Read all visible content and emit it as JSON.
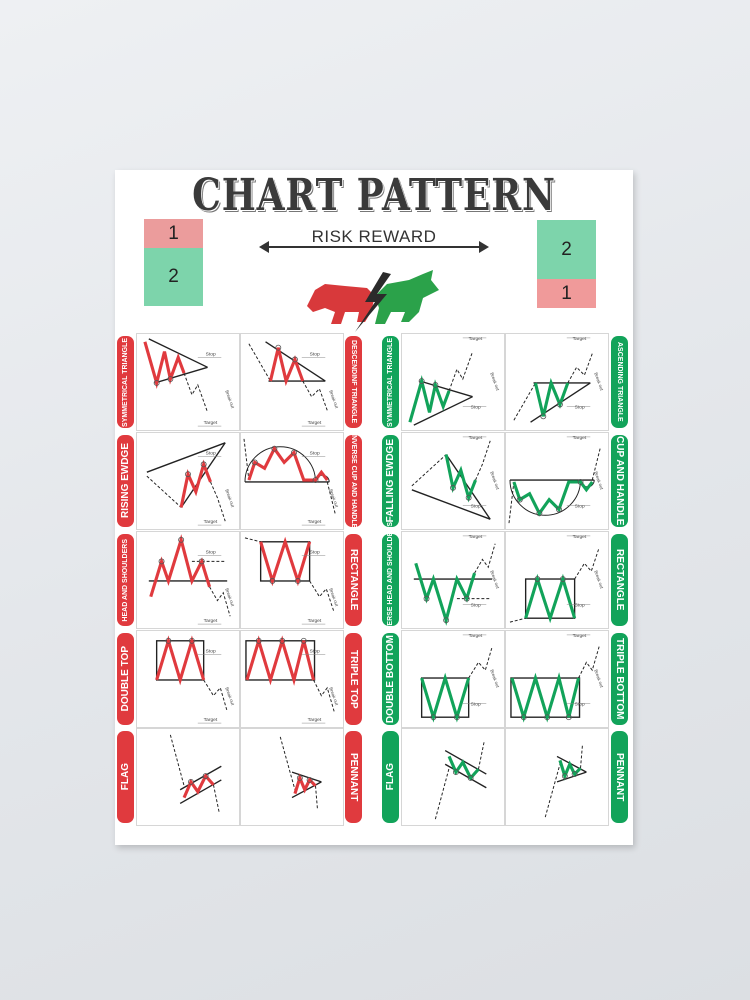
{
  "title": "CHART PATTERN",
  "subtitle": "RISK REWARD",
  "left_ratio": {
    "top": "1",
    "bottom": "2"
  },
  "right_ratio": {
    "top": "2",
    "bottom": "1"
  },
  "colors": {
    "bearish": "#e03a3e",
    "bullish": "#12a35a",
    "risk": "#f09a9a",
    "reward": "#7fd5ad"
  },
  "cell_text": {
    "stop": "Stop",
    "target": "Target",
    "breakout": "Break out"
  },
  "bearish": {
    "rows": [
      {
        "left_label": "SYMMETRICAL TRIANGLE",
        "right_label": "DESCENDINF TRIANGLE"
      },
      {
        "left_label": "RISING EWDGE",
        "right_label": "INVERSE CUP AND HANDLE"
      },
      {
        "left_label": "HEAD AND SHOULDERS",
        "right_label": "RECTANGLE"
      },
      {
        "left_label": "DOUBLE TOP",
        "right_label": "TRIPLE TOP"
      },
      {
        "left_label": "FLAG",
        "right_label": "PENNANT"
      }
    ]
  },
  "bullish": {
    "rows": [
      {
        "left_label": "SYMMETRICAL TRIANGLE",
        "right_label": "ASCENDING TRIANGLE"
      },
      {
        "left_label": "FALLING EWDGE",
        "right_label": "CUP AND HANDLE"
      },
      {
        "left_label": "INVERSE HEAD AND SHOULDERS",
        "right_label": "RECTANGLE"
      },
      {
        "left_label": "DOUBLE BOTTOM",
        "right_label": "TRIPLE BOTTOM"
      },
      {
        "left_label": "FLAG",
        "right_label": "PENNANT"
      }
    ]
  }
}
